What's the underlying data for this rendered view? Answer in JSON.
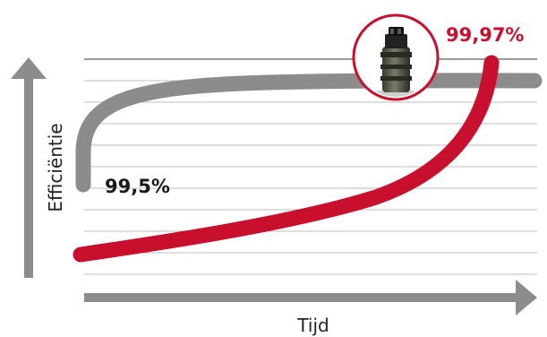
{
  "chart_data": {
    "type": "line",
    "xlabel": "Tijd",
    "ylabel": "Efficiëntie",
    "series": [
      {
        "color": "#8c8c8c",
        "end_label": ""
      },
      {
        "color": "#c8102e"
      }
    ],
    "annotations": {
      "grey_start_label": "99,5%",
      "red_end_label": "99,97%"
    },
    "grid": true,
    "product_image": "filter-element-photo"
  }
}
